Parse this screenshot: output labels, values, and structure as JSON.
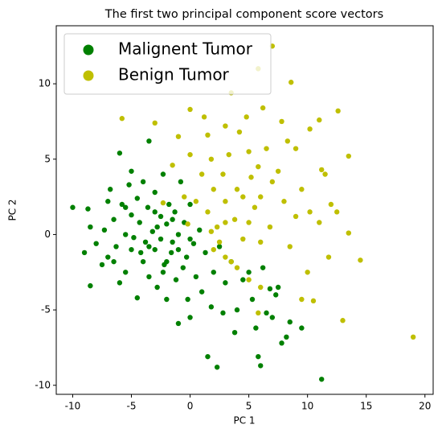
{
  "chart_data": {
    "type": "scatter",
    "title": "The first two principal component score vectors",
    "x_label": "PC 1",
    "y_label": "PC 2",
    "xlim": [
      -11.4,
      20.7
    ],
    "ylim": [
      -10.6,
      13.85
    ],
    "xticks": [
      -10,
      -5,
      0,
      5,
      10,
      15,
      20
    ],
    "yticks": [
      -10,
      -5,
      0,
      5,
      10
    ],
    "legend_position": "upper-left",
    "series": [
      {
        "name": "Malignent Tumor",
        "color": "#008000",
        "x": [
          -10,
          -9,
          -8.5,
          -8.7,
          -8.5,
          -8,
          -7.5,
          -7.3,
          -7,
          -7,
          -6.8,
          -6.5,
          -6.3,
          -6,
          -6,
          -5.8,
          -5.5,
          -5.5,
          -5.2,
          -5,
          -5,
          -5,
          -4.8,
          -4.5,
          -4.5,
          -4.3,
          -4,
          -4,
          -3.8,
          -3.6,
          -3.5,
          -3.5,
          -3.2,
          -3,
          -3,
          -2.8,
          -2.5,
          -2.5,
          -2.3,
          -2.2,
          -2,
          -2,
          -1.8,
          -1.6,
          -1.5,
          -1.3,
          -1.2,
          -1,
          -1,
          -0.8,
          -0.6,
          -0.5,
          -0.3,
          -0.2,
          0,
          0,
          0.3,
          0.5,
          0.8,
          1,
          1.3,
          1.5,
          1.8,
          2,
          2.3,
          2.5,
          2.8,
          3,
          3.5,
          3.8,
          4,
          4.5,
          5,
          5.3,
          5.6,
          5.8,
          6,
          6.2,
          6.5,
          6.8,
          7,
          7.3,
          7.5,
          7.8,
          8.2,
          8.5,
          9.5,
          11.2,
          -3.5,
          -2.8,
          -2,
          -1.5,
          -4.2,
          -3,
          -2.3,
          -1,
          0,
          -5.5,
          -6.5
        ],
        "values": [
          1.8,
          -1.2,
          0.5,
          1.7,
          -3.4,
          -0.6,
          -2,
          0.3,
          2.2,
          -1.5,
          3,
          1,
          -0.8,
          5.4,
          -3.2,
          2,
          0,
          -2.5,
          3.3,
          4.2,
          1.3,
          -1,
          -0.2,
          2.4,
          -4.2,
          0.8,
          -1.8,
          3.5,
          -0.5,
          1.8,
          -2.8,
          6.2,
          0.2,
          2.8,
          -1,
          -3.5,
          1.2,
          -0.3,
          4,
          -2,
          0.7,
          -4.3,
          2,
          -1.2,
          -0.5,
          1.5,
          -3,
          0,
          -5.9,
          3.5,
          -2.2,
          0.8,
          -1.5,
          -4.3,
          -5.5,
          2,
          -0.6,
          -2.8,
          0.3,
          -3.8,
          -1.2,
          -8.1,
          -4.8,
          -2.5,
          -8.8,
          -0.8,
          -5.2,
          -3.2,
          -1.8,
          -6.5,
          -5,
          -3,
          -2.5,
          -4.3,
          -6.2,
          -8.1,
          -8.7,
          -2.2,
          -5.2,
          -3.6,
          -5.5,
          -4,
          -3.5,
          -7.2,
          -6.8,
          -5.8,
          -6.2,
          -9.6,
          -0.8,
          0.5,
          -1.8,
          1,
          -1.2,
          1.5,
          -2.5,
          -1,
          -0.3,
          1.8,
          -1.8
        ]
      },
      {
        "name": "Benign Tumor",
        "color": "#bfbf00",
        "x": [
          -5.8,
          -3,
          -2.3,
          -1.5,
          -1,
          -0.5,
          -0.2,
          0,
          0,
          0.5,
          1,
          1.2,
          1.5,
          1.5,
          1.8,
          2,
          2.3,
          2.5,
          2.8,
          3,
          3,
          3.3,
          3.5,
          3.8,
          4,
          4.2,
          4.5,
          4.5,
          4.8,
          5,
          5,
          5.2,
          5.5,
          5.8,
          5.8,
          6,
          6,
          6.2,
          6.5,
          6.8,
          7,
          7,
          7.5,
          7.8,
          8,
          8.3,
          8.5,
          8.6,
          9,
          9,
          9.5,
          10,
          10.2,
          10.2,
          10.5,
          11,
          11,
          11.2,
          11.5,
          11.8,
          12,
          12.5,
          12.6,
          13,
          13.5,
          13.5,
          14.5,
          19,
          2,
          3,
          4,
          5,
          5.8,
          6,
          9.5,
          3.5,
          1.8,
          3
        ],
        "values": [
          7.7,
          7.4,
          2.1,
          4.6,
          6.5,
          2.5,
          0.7,
          5.3,
          8.3,
          2.2,
          4,
          7.8,
          6.6,
          1.5,
          5,
          3,
          0.5,
          -0.5,
          4,
          2.2,
          7.2,
          5.3,
          -1.8,
          1,
          3,
          6.8,
          -0.3,
          2.5,
          7.8,
          5.5,
          0.8,
          3.8,
          1.8,
          4.5,
          11,
          -0.5,
          2.5,
          8.4,
          5.7,
          0.5,
          3.5,
          12.5,
          4.2,
          7.5,
          2.2,
          6.2,
          -0.8,
          10.1,
          5.7,
          1.2,
          3,
          -2.5,
          7,
          1.5,
          -4.4,
          0.8,
          7.6,
          4.3,
          4,
          -1.5,
          2,
          1.5,
          8.2,
          -5.7,
          0.1,
          5.2,
          -1.7,
          -6.8,
          -1,
          -1.5,
          -2.2,
          -3,
          -5.2,
          -3.5,
          -4.3,
          9.4,
          0.2,
          0.8
        ]
      }
    ]
  }
}
